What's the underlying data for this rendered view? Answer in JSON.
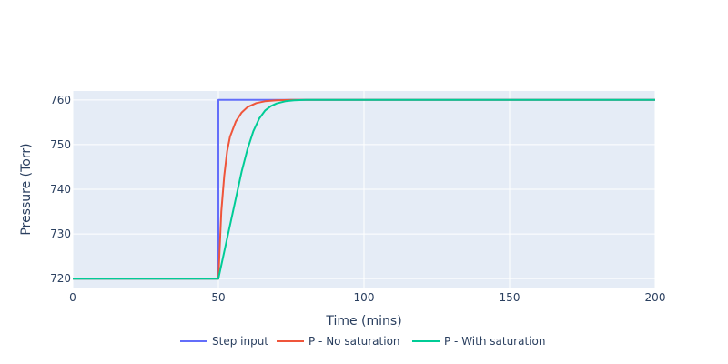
{
  "chart_data": {
    "type": "line",
    "xlabel": "Time (mins)",
    "ylabel": "Pressure (Torr)",
    "xlim": [
      0,
      200
    ],
    "ylim": [
      718,
      762
    ],
    "x_ticks": [
      0,
      50,
      100,
      150,
      200
    ],
    "y_ticks": [
      720,
      730,
      740,
      750,
      760
    ],
    "grid": true,
    "legend_position": "bottom-center",
    "plot_background": "#e5ecf6",
    "series": [
      {
        "name": "Step input",
        "color": "#636efa",
        "points": [
          [
            0,
            720
          ],
          [
            50,
            720
          ],
          [
            50,
            760
          ],
          [
            200,
            760
          ]
        ]
      },
      {
        "name": "P - No saturation",
        "color": "#ef553b",
        "points": [
          [
            0,
            720
          ],
          [
            50,
            720
          ],
          [
            51,
            735
          ],
          [
            52,
            743
          ],
          [
            53,
            748.5
          ],
          [
            54,
            751.8
          ],
          [
            56,
            755.2
          ],
          [
            58,
            757.2
          ],
          [
            60,
            758.4
          ],
          [
            63,
            759.3
          ],
          [
            66,
            759.7
          ],
          [
            70,
            759.9
          ],
          [
            75,
            760
          ],
          [
            200,
            760
          ]
        ]
      },
      {
        "name": "P - With saturation",
        "color": "#00cc96",
        "points": [
          [
            0,
            720
          ],
          [
            50,
            720
          ],
          [
            52,
            726
          ],
          [
            54,
            732
          ],
          [
            56,
            738
          ],
          [
            58,
            744
          ],
          [
            60,
            749
          ],
          [
            62,
            753
          ],
          [
            64,
            755.8
          ],
          [
            66,
            757.6
          ],
          [
            68,
            758.6
          ],
          [
            70,
            759.2
          ],
          [
            73,
            759.7
          ],
          [
            76,
            759.9
          ],
          [
            80,
            760
          ],
          [
            200,
            760
          ]
        ]
      }
    ]
  }
}
